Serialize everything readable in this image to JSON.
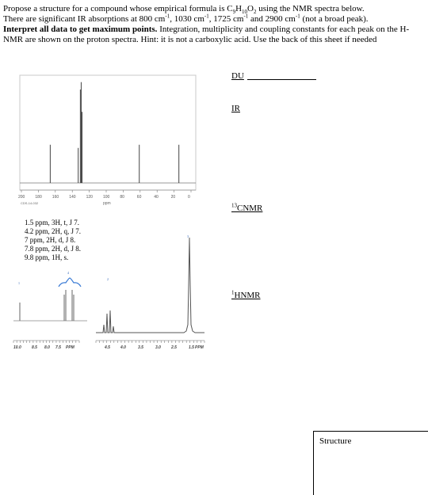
{
  "prompt": {
    "p1_a": "Propose a structure for a compound whose empirical formula is C",
    "c_sub": "9",
    "p1_b": "H",
    "h_sub": "10",
    "p1_c": "O",
    "o_sub": "2",
    "p1_d": " using the NMR spectra below.",
    "p2_a": "There are significant IR absorptions at 800 cm",
    "p2_sup1": "-1",
    "p2_b": ",   1030 cm",
    "p2_sup2": "-1",
    "p2_c": ", 1725 cm",
    "p2_sup3": "-1",
    "p2_d": " and 2900 cm",
    "p2_sup4": "-1",
    "p2_e": " (not a broad peak).",
    "bold_text": "Interpret all data to get maximum points.",
    "p3_rest": " Integration, multiplicity and coupling constants for each peak on the H-NMR are shown on the proton spectra. Hint: it is not a carboxylic acid. Use the back of this sheet if needed"
  },
  "labels": {
    "du": "DU",
    "ir": "IR",
    "cnmr_sup": "13",
    "cnmr": "CNMR",
    "hnmr_sup": "1",
    "hnmr": "HNMR",
    "structure": "Structure"
  },
  "c13_spectrum": {
    "axis_ticks": [
      "200",
      "180",
      "160",
      "140",
      "120",
      "100",
      "80",
      "60",
      "40",
      "20",
      "0"
    ],
    "axis_unit": "ppm",
    "code": "CDS-14-032",
    "peaks_ppm": [
      166,
      133,
      130.5,
      129.5,
      128.5,
      61,
      14.3
    ],
    "peak_heights": [
      0.36,
      0.33,
      0.88,
      0.95,
      0.67,
      0.36,
      0.36
    ]
  },
  "h1_peaks": [
    "1.5 ppm, 3H, t, J 7.",
    "4.2 ppm, 2H, q, J 7.",
    "7 ppm, 2H, d, J 8.",
    "7.8 ppm, 2H, d, J 8.",
    "9.8 ppm, 1H, s."
  ],
  "h1_spectrum": {
    "integrals": [
      "1",
      "4",
      "2",
      "3"
    ],
    "left_ticks": [
      "10.0",
      "8.5",
      "8.0",
      "7.5"
    ],
    "left_unit": "PPM",
    "right_ticks": [
      "4.5",
      "4.0",
      "3.5",
      "3.0",
      "2.5",
      "2.0",
      "1.5"
    ],
    "right_unit": "PPM"
  }
}
